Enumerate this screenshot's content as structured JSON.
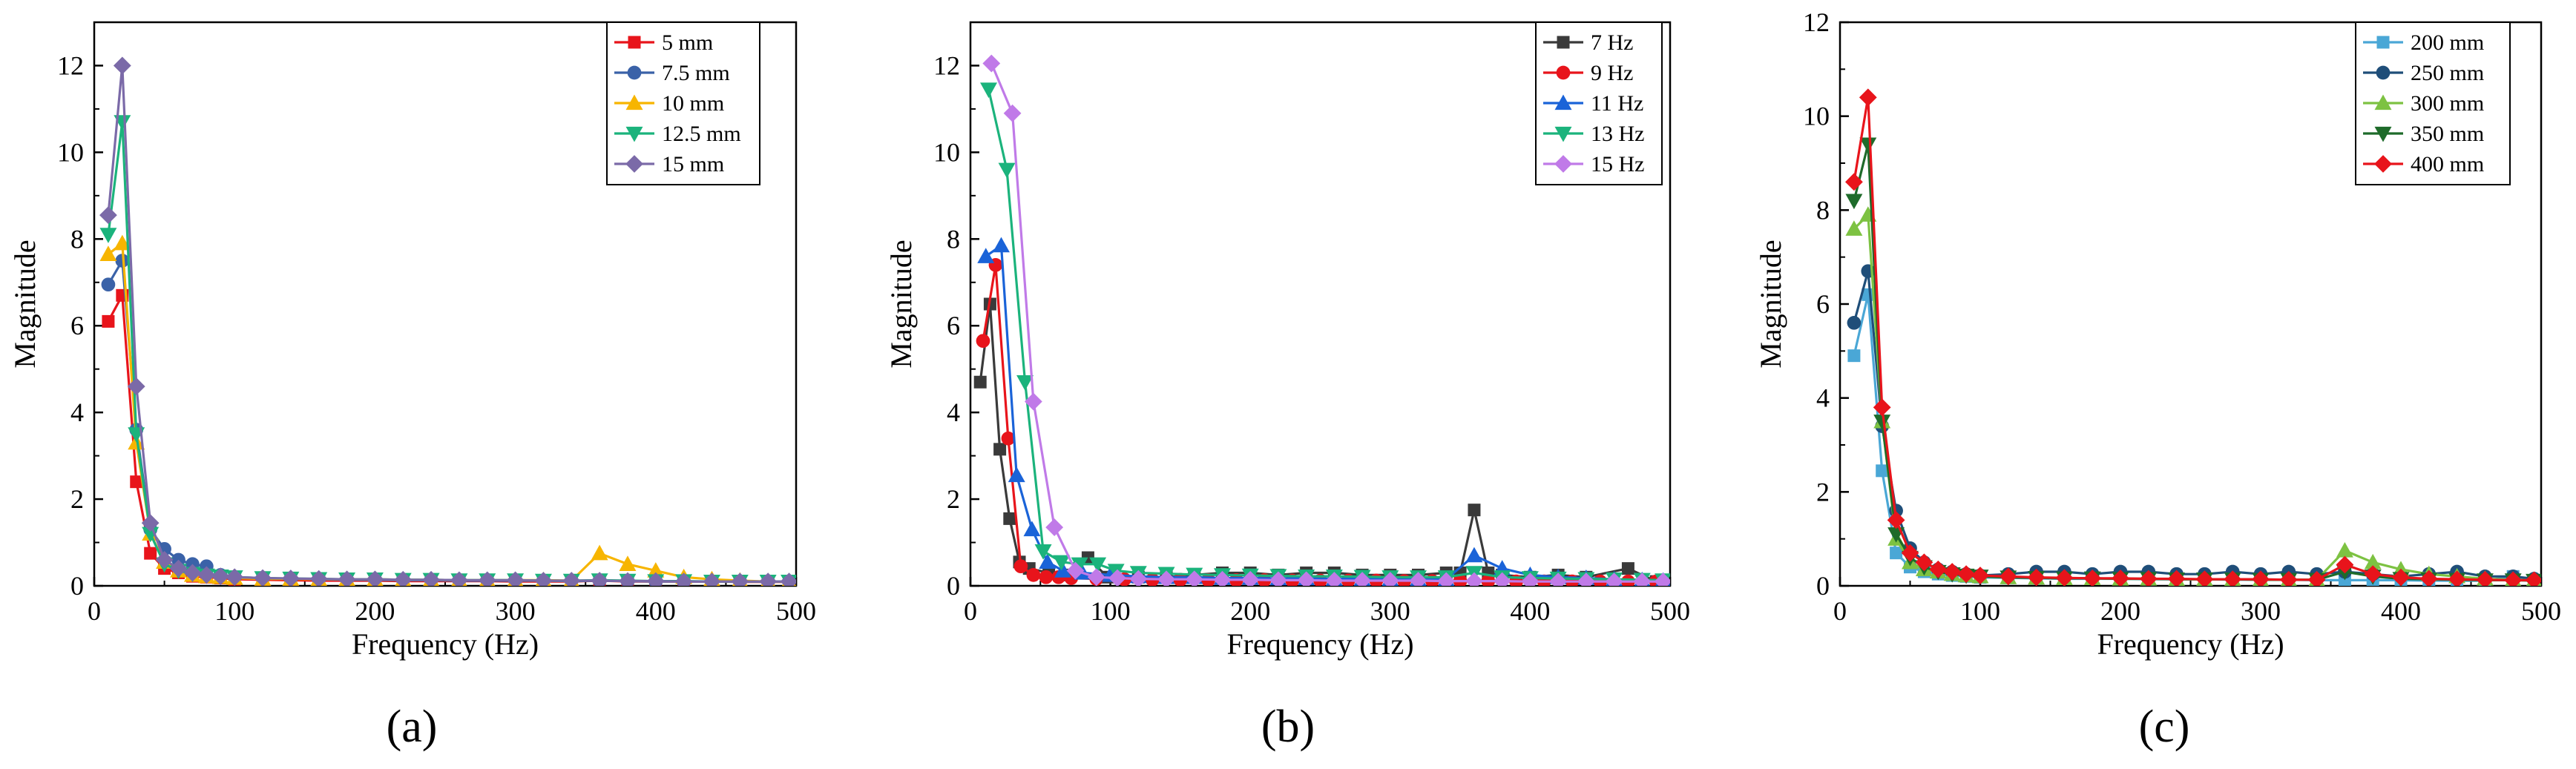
{
  "figure": {
    "panel_labels": [
      "(a)",
      "(b)",
      "(c)"
    ]
  },
  "chart_data": [
    {
      "type": "line",
      "panel": "(a)",
      "xlabel": "Frequency (Hz)",
      "ylabel": "Magnitude",
      "xlim": [
        0,
        500
      ],
      "ylim": [
        0,
        13
      ],
      "xticks": [
        0,
        100,
        200,
        300,
        400,
        500
      ],
      "yticks": [
        0,
        2,
        4,
        6,
        8,
        10,
        12
      ],
      "legend_position": "top-right",
      "series": [
        {
          "name": "5 mm",
          "color": "#e8141b",
          "marker": "square",
          "x": [
            10,
            20,
            30,
            40,
            50,
            60,
            70,
            80,
            90,
            100,
            120,
            140,
            160,
            180,
            200,
            220,
            240,
            260,
            280,
            300,
            320,
            340,
            360,
            380,
            400,
            420,
            440,
            460,
            480,
            495
          ],
          "y": [
            6.1,
            6.7,
            2.4,
            0.75,
            0.4,
            0.3,
            0.22,
            0.2,
            0.18,
            0.15,
            0.14,
            0.13,
            0.12,
            0.12,
            0.12,
            0.11,
            0.11,
            0.11,
            0.11,
            0.1,
            0.1,
            0.1,
            0.12,
            0.1,
            0.1,
            0.1,
            0.1,
            0.09,
            0.09,
            0.09
          ]
        },
        {
          "name": "7.5 mm",
          "color": "#3a62a8",
          "marker": "circle",
          "x": [
            10,
            20,
            30,
            40,
            50,
            60,
            70,
            80,
            90,
            100,
            120,
            140,
            160,
            180,
            200,
            220,
            240,
            260,
            280,
            300,
            320,
            340,
            360,
            380,
            400,
            420,
            440,
            460,
            480,
            495
          ],
          "y": [
            6.95,
            7.5,
            3.6,
            1.3,
            0.85,
            0.6,
            0.5,
            0.45,
            0.25,
            0.2,
            0.18,
            0.16,
            0.15,
            0.14,
            0.14,
            0.13,
            0.13,
            0.12,
            0.12,
            0.12,
            0.12,
            0.11,
            0.12,
            0.11,
            0.1,
            0.1,
            0.1,
            0.1,
            0.1,
            0.1
          ]
        },
        {
          "name": "10 mm",
          "color": "#f7b500",
          "marker": "triangle-up",
          "x": [
            10,
            20,
            30,
            40,
            50,
            60,
            70,
            80,
            90,
            100,
            120,
            140,
            160,
            180,
            200,
            220,
            240,
            260,
            280,
            300,
            320,
            340,
            360,
            380,
            400,
            420,
            440,
            460,
            480,
            495
          ],
          "y": [
            7.65,
            7.9,
            3.3,
            1.2,
            0.55,
            0.35,
            0.25,
            0.22,
            0.2,
            0.18,
            0.16,
            0.16,
            0.15,
            0.15,
            0.15,
            0.14,
            0.14,
            0.13,
            0.13,
            0.13,
            0.13,
            0.12,
            0.75,
            0.5,
            0.35,
            0.2,
            0.15,
            0.12,
            0.1,
            0.1
          ]
        },
        {
          "name": "12.5 mm",
          "color": "#1bb37c",
          "marker": "triangle-down",
          "x": [
            10,
            20,
            30,
            40,
            50,
            60,
            70,
            80,
            90,
            100,
            120,
            140,
            160,
            180,
            200,
            220,
            240,
            260,
            280,
            300,
            320,
            340,
            360,
            380,
            400,
            420,
            440,
            460,
            480,
            495
          ],
          "y": [
            8.1,
            10.7,
            3.5,
            1.2,
            0.5,
            0.35,
            0.28,
            0.24,
            0.22,
            0.2,
            0.18,
            0.17,
            0.16,
            0.15,
            0.15,
            0.14,
            0.14,
            0.13,
            0.13,
            0.13,
            0.12,
            0.12,
            0.13,
            0.12,
            0.11,
            0.11,
            0.1,
            0.1,
            0.1,
            0.1
          ]
        },
        {
          "name": "15 mm",
          "color": "#7b6aa8",
          "marker": "diamond",
          "x": [
            10,
            20,
            30,
            40,
            50,
            60,
            70,
            80,
            90,
            100,
            120,
            140,
            160,
            180,
            200,
            220,
            240,
            260,
            280,
            300,
            320,
            340,
            360,
            380,
            400,
            420,
            440,
            460,
            480,
            495
          ],
          "y": [
            8.55,
            12.0,
            4.6,
            1.45,
            0.6,
            0.4,
            0.3,
            0.25,
            0.22,
            0.2,
            0.18,
            0.17,
            0.16,
            0.15,
            0.15,
            0.14,
            0.14,
            0.13,
            0.13,
            0.13,
            0.12,
            0.12,
            0.12,
            0.11,
            0.11,
            0.1,
            0.1,
            0.1,
            0.1,
            0.1
          ]
        }
      ]
    },
    {
      "type": "line",
      "panel": "(b)",
      "xlabel": "Frequency (Hz)",
      "ylabel": "Magnitude",
      "xlim": [
        0,
        500
      ],
      "ylim": [
        0,
        13
      ],
      "xticks": [
        0,
        100,
        200,
        300,
        400,
        500
      ],
      "yticks": [
        0,
        2,
        4,
        6,
        8,
        10,
        12
      ],
      "legend_position": "top-right",
      "series": [
        {
          "name": "7 Hz",
          "color": "#3a3a3a",
          "marker": "square",
          "x": [
            7,
            14,
            21,
            28,
            35,
            42,
            56,
            70,
            84,
            98,
            120,
            140,
            160,
            180,
            200,
            220,
            240,
            260,
            280,
            300,
            320,
            340,
            350,
            360,
            370,
            380,
            400,
            420,
            440,
            470,
            490
          ],
          "y": [
            4.7,
            6.5,
            3.15,
            1.55,
            0.55,
            0.4,
            0.3,
            0.25,
            0.65,
            0.2,
            0.2,
            0.2,
            0.25,
            0.3,
            0.3,
            0.25,
            0.3,
            0.3,
            0.25,
            0.25,
            0.25,
            0.3,
            0.3,
            1.75,
            0.3,
            0.25,
            0.2,
            0.25,
            0.2,
            0.4,
            0.1
          ]
        },
        {
          "name": "9 Hz",
          "color": "#e8141b",
          "marker": "circle",
          "x": [
            9,
            18,
            27,
            36,
            45,
            54,
            63,
            72,
            90,
            110,
            130,
            150,
            170,
            190,
            210,
            230,
            250,
            270,
            290,
            310,
            330,
            350,
            370,
            390,
            410,
            430,
            450,
            470,
            490
          ],
          "y": [
            5.65,
            7.4,
            3.4,
            0.45,
            0.25,
            0.2,
            0.2,
            0.18,
            0.16,
            0.15,
            0.14,
            0.14,
            0.13,
            0.13,
            0.13,
            0.12,
            0.12,
            0.12,
            0.12,
            0.11,
            0.11,
            0.11,
            0.11,
            0.1,
            0.1,
            0.1,
            0.1,
            0.1,
            0.1
          ]
        },
        {
          "name": "11 Hz",
          "color": "#1a63d8",
          "marker": "triangle-up",
          "x": [
            11,
            22,
            33,
            44,
            55,
            66,
            80,
            100,
            120,
            140,
            160,
            180,
            200,
            220,
            240,
            260,
            280,
            300,
            320,
            340,
            360,
            380,
            400,
            420,
            440,
            460,
            480,
            495
          ],
          "y": [
            7.6,
            7.85,
            2.55,
            1.3,
            0.55,
            0.35,
            0.3,
            0.25,
            0.22,
            0.2,
            0.2,
            0.18,
            0.18,
            0.17,
            0.17,
            0.16,
            0.16,
            0.15,
            0.15,
            0.15,
            0.7,
            0.4,
            0.25,
            0.2,
            0.18,
            0.15,
            0.13,
            0.12
          ]
        },
        {
          "name": "13 Hz",
          "color": "#1bb37c",
          "marker": "triangle-down",
          "x": [
            13,
            26,
            39,
            52,
            65,
            78,
            91,
            104,
            120,
            140,
            160,
            180,
            200,
            220,
            240,
            260,
            280,
            300,
            320,
            340,
            360,
            380,
            400,
            420,
            440,
            460,
            480,
            495
          ],
          "y": [
            11.45,
            9.6,
            4.7,
            0.8,
            0.55,
            0.5,
            0.5,
            0.35,
            0.3,
            0.28,
            0.26,
            0.25,
            0.24,
            0.23,
            0.22,
            0.22,
            0.21,
            0.2,
            0.2,
            0.2,
            0.3,
            0.2,
            0.18,
            0.17,
            0.16,
            0.15,
            0.14,
            0.13
          ]
        },
        {
          "name": "15 Hz",
          "color": "#c07ae8",
          "marker": "diamond",
          "x": [
            15,
            30,
            45,
            60,
            75,
            90,
            105,
            120,
            140,
            160,
            180,
            200,
            220,
            240,
            260,
            280,
            300,
            320,
            340,
            360,
            380,
            400,
            420,
            440,
            460,
            480,
            495
          ],
          "y": [
            12.05,
            10.9,
            4.25,
            1.35,
            0.35,
            0.2,
            0.18,
            0.16,
            0.15,
            0.15,
            0.14,
            0.14,
            0.13,
            0.13,
            0.12,
            0.12,
            0.12,
            0.12,
            0.11,
            0.11,
            0.11,
            0.1,
            0.1,
            0.1,
            0.1,
            0.1,
            0.1
          ]
        }
      ]
    },
    {
      "type": "line",
      "panel": "(c)",
      "xlabel": "Frequency (Hz)",
      "ylabel": "Magnitude",
      "xlim": [
        0,
        500
      ],
      "ylim": [
        0,
        12
      ],
      "xticks": [
        0,
        100,
        200,
        300,
        400,
        500
      ],
      "yticks": [
        0,
        2,
        4,
        6,
        8,
        10,
        12
      ],
      "legend_position": "top-right",
      "series": [
        {
          "name": "200 mm",
          "color": "#4aa7d6",
          "marker": "square",
          "x": [
            10,
            20,
            30,
            40,
            50,
            60,
            70,
            80,
            90,
            100,
            120,
            140,
            160,
            180,
            200,
            220,
            240,
            260,
            280,
            300,
            320,
            340,
            360,
            380,
            400,
            420,
            440,
            460,
            480,
            495
          ],
          "y": [
            4.9,
            6.2,
            2.45,
            0.7,
            0.4,
            0.3,
            0.25,
            0.22,
            0.2,
            0.18,
            0.17,
            0.16,
            0.15,
            0.15,
            0.15,
            0.14,
            0.14,
            0.14,
            0.13,
            0.13,
            0.13,
            0.12,
            0.12,
            0.12,
            0.12,
            0.11,
            0.11,
            0.11,
            0.2,
            0.1
          ]
        },
        {
          "name": "250 mm",
          "color": "#1f4e79",
          "marker": "circle",
          "x": [
            10,
            20,
            30,
            40,
            50,
            60,
            70,
            80,
            90,
            100,
            120,
            140,
            160,
            180,
            200,
            220,
            240,
            260,
            280,
            300,
            320,
            340,
            360,
            380,
            400,
            420,
            440,
            460,
            480,
            495
          ],
          "y": [
            5.6,
            6.7,
            3.4,
            1.6,
            0.8,
            0.5,
            0.35,
            0.3,
            0.25,
            0.22,
            0.25,
            0.3,
            0.3,
            0.25,
            0.3,
            0.3,
            0.25,
            0.25,
            0.3,
            0.25,
            0.3,
            0.25,
            0.3,
            0.25,
            0.2,
            0.25,
            0.3,
            0.2,
            0.2,
            0.15
          ]
        },
        {
          "name": "300 mm",
          "color": "#7dc242",
          "marker": "triangle-up",
          "x": [
            10,
            20,
            30,
            40,
            50,
            60,
            70,
            80,
            90,
            100,
            120,
            140,
            160,
            180,
            200,
            220,
            240,
            260,
            280,
            300,
            320,
            340,
            360,
            380,
            400,
            420,
            440,
            460,
            480,
            495
          ],
          "y": [
            7.6,
            7.9,
            3.5,
            1.0,
            0.5,
            0.35,
            0.3,
            0.25,
            0.22,
            0.2,
            0.18,
            0.17,
            0.16,
            0.16,
            0.15,
            0.15,
            0.14,
            0.14,
            0.14,
            0.13,
            0.13,
            0.13,
            0.75,
            0.5,
            0.35,
            0.25,
            0.2,
            0.15,
            0.13,
            0.12
          ]
        },
        {
          "name": "350 mm",
          "color": "#1e6b2a",
          "marker": "triangle-down",
          "x": [
            10,
            20,
            30,
            40,
            50,
            60,
            70,
            80,
            90,
            100,
            120,
            140,
            160,
            180,
            200,
            220,
            240,
            260,
            280,
            300,
            320,
            340,
            360,
            380,
            400,
            420,
            440,
            460,
            480,
            495
          ],
          "y": [
            8.2,
            9.4,
            3.5,
            1.1,
            0.6,
            0.4,
            0.3,
            0.25,
            0.22,
            0.2,
            0.18,
            0.17,
            0.16,
            0.16,
            0.15,
            0.15,
            0.14,
            0.14,
            0.14,
            0.13,
            0.13,
            0.13,
            0.3,
            0.2,
            0.15,
            0.14,
            0.13,
            0.12,
            0.12,
            0.11
          ]
        },
        {
          "name": "400 mm",
          "color": "#e8141b",
          "marker": "diamond",
          "x": [
            10,
            20,
            30,
            40,
            50,
            60,
            70,
            80,
            90,
            100,
            120,
            140,
            160,
            180,
            200,
            220,
            240,
            260,
            280,
            300,
            320,
            340,
            360,
            380,
            400,
            420,
            440,
            460,
            480,
            495
          ],
          "y": [
            8.6,
            10.4,
            3.8,
            1.4,
            0.7,
            0.5,
            0.35,
            0.3,
            0.25,
            0.22,
            0.2,
            0.18,
            0.17,
            0.16,
            0.16,
            0.15,
            0.15,
            0.14,
            0.14,
            0.14,
            0.13,
            0.13,
            0.45,
            0.25,
            0.18,
            0.15,
            0.14,
            0.13,
            0.12,
            0.12
          ]
        }
      ]
    }
  ]
}
